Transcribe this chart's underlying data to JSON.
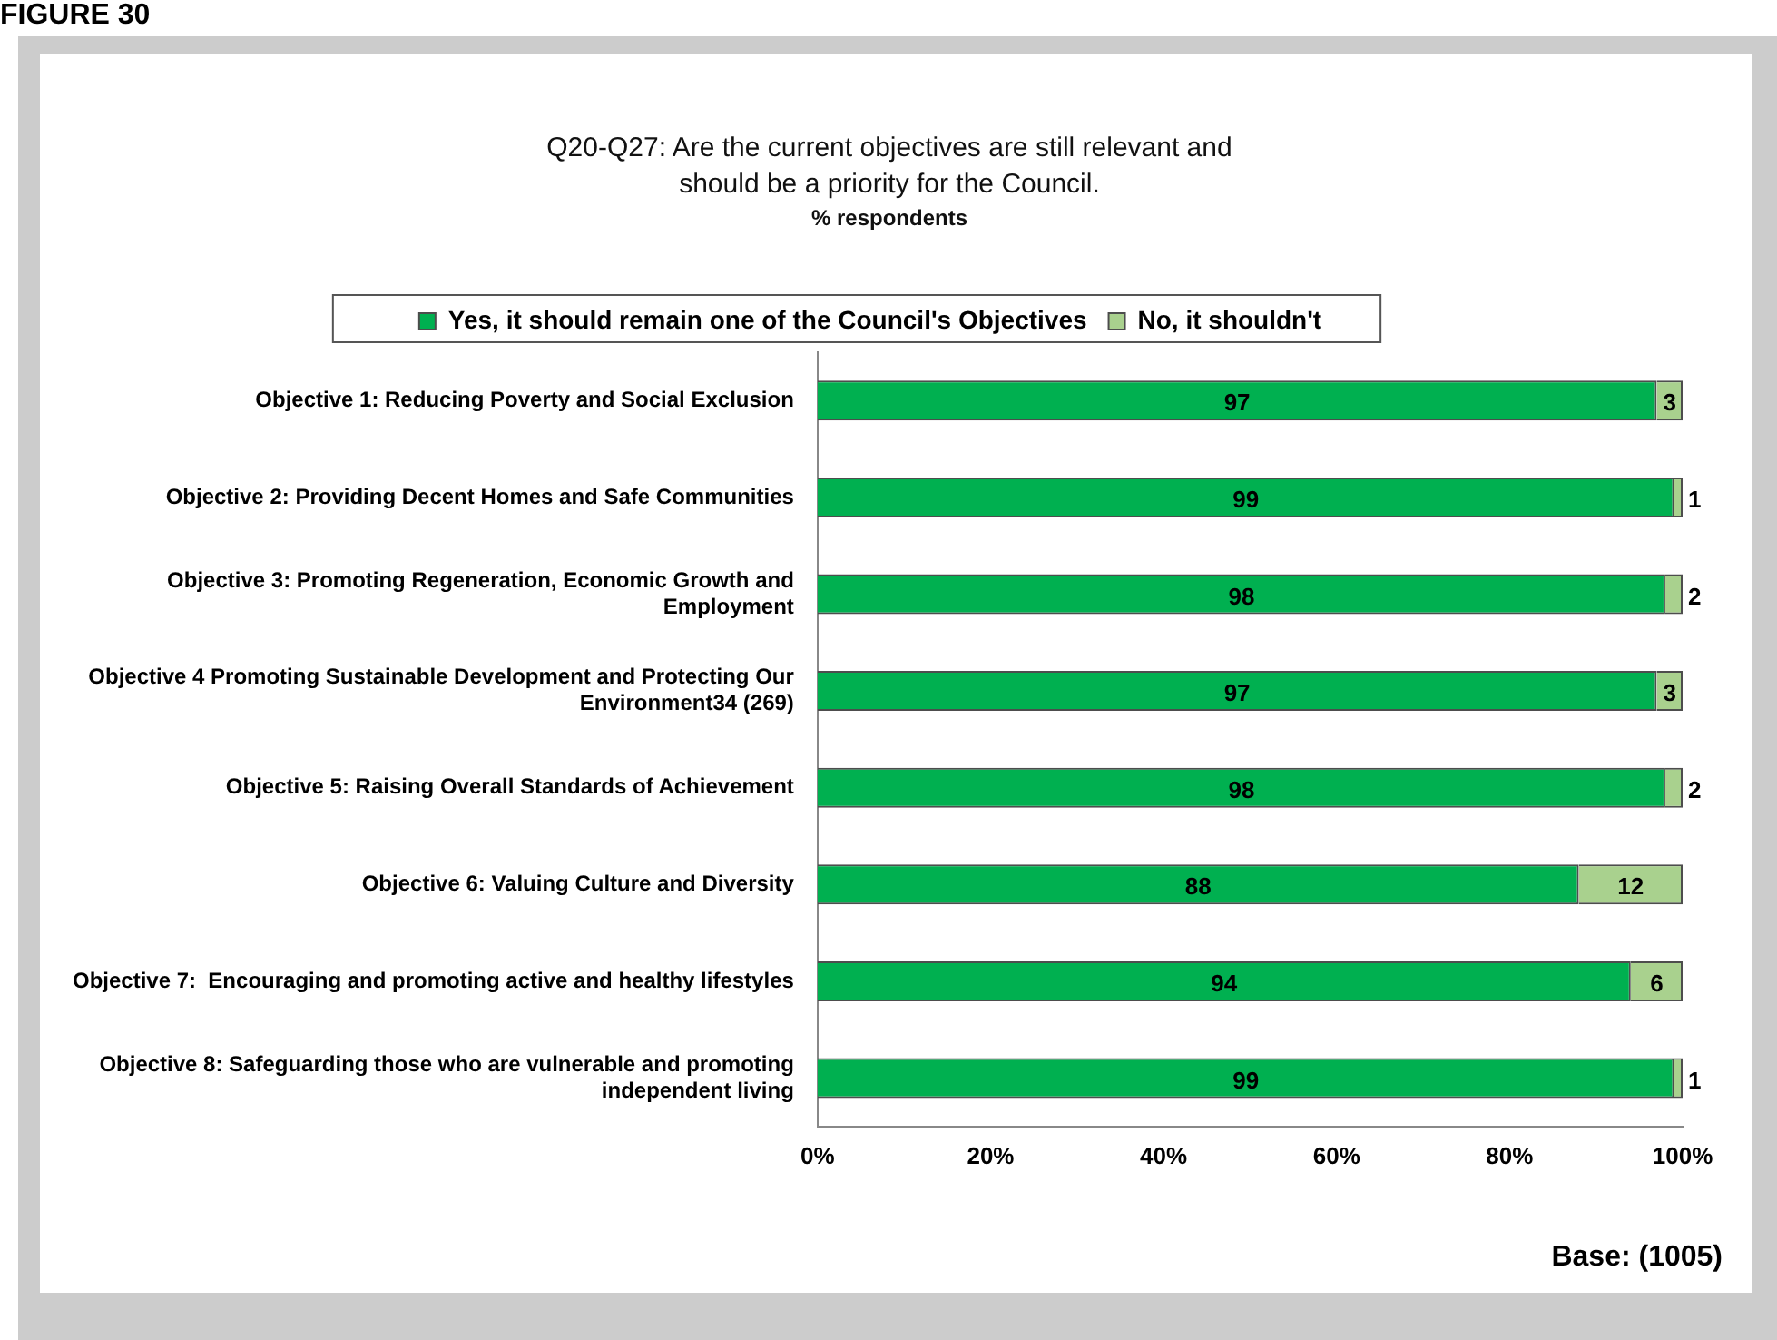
{
  "chart_data": {
    "type": "bar",
    "orientation": "horizontal",
    "stacked": true,
    "title": "Q20-Q27: Are the current objectives are still relevant and should be a priority for the Council.",
    "subtitle": "% respondents",
    "annotations": [
      "FIGURE 30",
      "Base: (1005)"
    ],
    "categories": [
      "Objective 1: Reducing Poverty and Social Exclusion",
      "Objective 2: Providing Decent Homes and Safe Communities",
      "Objective 3: Promoting Regeneration, Economic Growth and Employment",
      "Objective 4 Promoting Sustainable Development and Protecting Our Environment34 (269)",
      "Objective 5: Raising Overall Standards of Achievement",
      "Objective 6: Valuing Culture and Diversity",
      "Objective 7:  Encouraging and promoting active and healthy lifestyles",
      "Objective 8: Safeguarding those who are vulnerable and promoting independent living"
    ],
    "series": [
      {
        "name": "Yes, it should remain one of the Council's Objectives",
        "color": "#00b050",
        "values": [
          97,
          99,
          98,
          97,
          98,
          88,
          94,
          99
        ]
      },
      {
        "name": "No, it shouldn't",
        "color": "#a9d18e",
        "values": [
          3,
          1,
          2,
          3,
          2,
          12,
          6,
          1
        ]
      }
    ],
    "xlim": [
      0,
      100
    ],
    "xticks": [
      {
        "value": 0,
        "label": "0%"
      },
      {
        "value": 20,
        "label": "20%"
      },
      {
        "value": 40,
        "label": "40%"
      },
      {
        "value": 60,
        "label": "60%"
      },
      {
        "value": 80,
        "label": "80%"
      },
      {
        "value": 100,
        "label": "100%"
      }
    ],
    "data_labels": true,
    "legend": "top",
    "grid": false
  }
}
